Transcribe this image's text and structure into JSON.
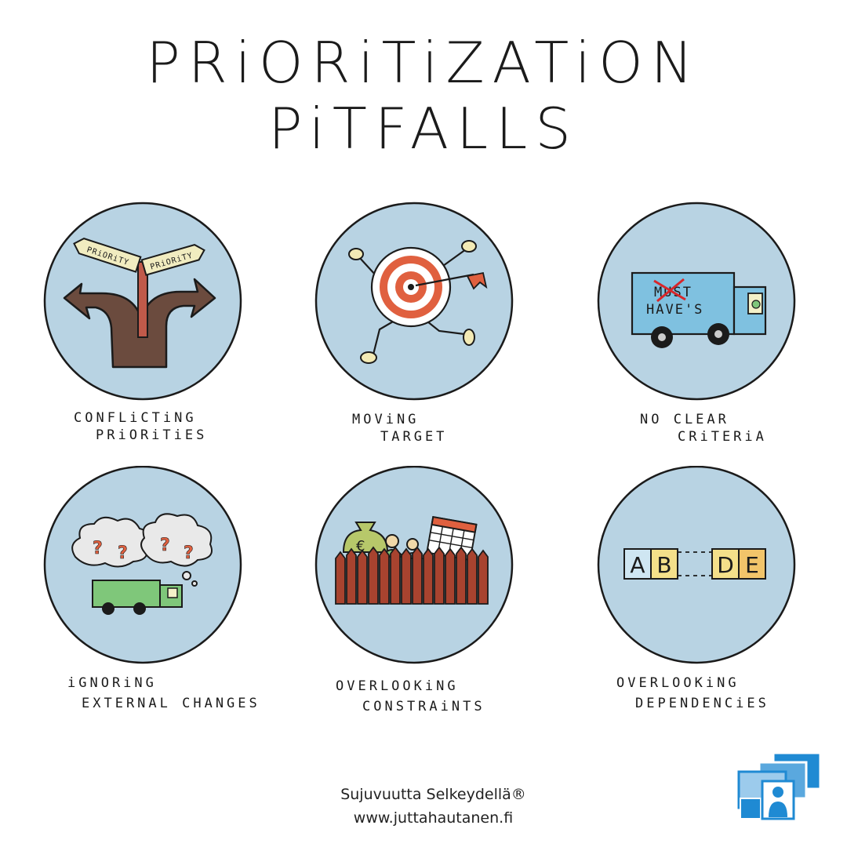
{
  "title": "PRiORiTiZATiON PiTFALLS",
  "colors": {
    "circle_fill": "#b8d3e3",
    "outline": "#1b1b1b",
    "arrow_brown": "#6b4b3e",
    "signpost_red": "#c05a4a",
    "target_red": "#e0603f",
    "truck_blue": "#7fc1e0",
    "truck_green": "#7fc77a",
    "fence_red": "#a8432f",
    "block_blue": "#cfe6f2",
    "block_yellow": "#f4e08a",
    "logo_blue": "#1f8ad3"
  },
  "tiles": [
    {
      "name": "conflicting-priorities",
      "icon": "forked-arrow-signpost-icon",
      "sign_left": "PRiORiTY",
      "sign_right": "PRiORiTY",
      "label_line1": "CONFLiCTiNG",
      "label_line2": "PRiORiTiES"
    },
    {
      "name": "moving-target",
      "icon": "running-target-icon",
      "label_line1": "MOViNG",
      "label_line2": "TARGET"
    },
    {
      "name": "no-clear-criteria",
      "icon": "must-haves-truck-icon",
      "truck_text_crossed": "MUST",
      "truck_text": "HAVE'S",
      "label_line1": "NO CLEAR",
      "label_line2": "CRiTERiA"
    },
    {
      "name": "ignoring-external-changes",
      "icon": "truck-question-clouds-icon",
      "cloud_marks": "? ? ? ?",
      "label_line1": "iGNORiNG",
      "label_line2": "EXTERNAL CHANGES"
    },
    {
      "name": "overlooking-constraints",
      "icon": "fence-money-people-calendar-icon",
      "money_symbol": "€",
      "label_line1": "OVERLOOKiNG",
      "label_line2": "CONSTRAiNTS"
    },
    {
      "name": "overlooking-dependencies",
      "icon": "letter-blocks-gap-icon",
      "block_a": "A",
      "block_b": "B",
      "block_d": "D",
      "block_e": "E",
      "label_line1": "OVERLOOKiNG",
      "label_line2": "DEPENDENCiES"
    }
  ],
  "footer": {
    "brand": "Sujuvuutta Selkeydellä®",
    "url": "www.juttahautanen.fi"
  }
}
